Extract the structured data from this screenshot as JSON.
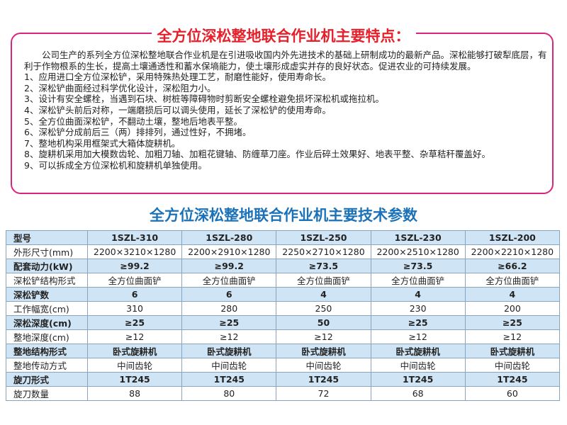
{
  "features": {
    "title": "全方位深松整地联合作业机主要特点：",
    "intro": "公司生产的系列全方位深松整地联合作业机是在引进吸收国内外先进技术的基础上研制成功的最新产品。深松能够打破犁底层，有利于作物根系的生长，提高土壤通透性和蓄水保墒能力，使土壤形成虚实并存的良好状态。促进农业的可持续发展。",
    "items": [
      "1、应用进口全方位深松铲，采用特殊热处理工艺，耐磨性能好，使用寿命长。",
      "2、深松铲曲面经过科学优化设计，深松阻力小。",
      "3、设计有安全螺栓，当遇到石块、树桩等障碍物时剪断安全螺栓避免损坏深松机或拖拉机。",
      "4、深松铲头前后对称，一端磨损后可以调头使用，延长了深松铲的使用寿命。",
      "5、全方位曲面深松铲，不翻动土壤，整地后地表平整。",
      "6、深松铲分成前后三（两）排排列，通过性好，不拥堵。",
      "7、整地机构采用框架式大箱体旋耕机。",
      "8、旋耕机采用加大模数齿轮、加粗刀轴、加粗花键轴、防缠草刀座。作业后碎土效果好、地表平整、杂草秸秆覆盖好。",
      "9、可以拆成全方位深松机和旋耕机单独使用。"
    ]
  },
  "table": {
    "title": "全方位深松整地联合作业机主要技术参数",
    "header": [
      "型号",
      "1SZL-310",
      "1SZL-280",
      "1SZL-250",
      "1SZL-230",
      "1SZL-200"
    ],
    "rows": [
      [
        "外形尺寸(mm)",
        "2200×3210×1280",
        "2200×2910×1280",
        "2250×2710×1280",
        "2200×2510×1280",
        "2200×2210×1280"
      ],
      [
        "配套动力(kW)",
        "≥99.2",
        "≥99.2",
        "≥73.5",
        "≥73.5",
        "≥66.2"
      ],
      [
        "深松铲结构形式",
        "全方位曲面铲",
        "全方位曲面铲",
        "全方位曲面铲",
        "全方位曲面铲",
        "全方位曲面铲"
      ],
      [
        "深松铲数",
        "6",
        "6",
        "4",
        "4",
        "4"
      ],
      [
        "工作幅宽(cm)",
        "310",
        "280",
        "250",
        "230",
        "200"
      ],
      [
        "深松深度(cm)",
        "≥25",
        "≥25",
        "50",
        "≥25",
        "≥25"
      ],
      [
        "整地深度(cm)",
        "≥12",
        "≥12",
        "≥12",
        "≥12",
        "≥12"
      ],
      [
        "整地结构形式",
        "卧式旋耕机",
        "卧式旋耕机",
        "卧式旋耕机",
        "卧式旋耕机",
        "卧式旋耕机"
      ],
      [
        "整地传动方式",
        "中间齿轮",
        "中间齿轮",
        "中间齿轮",
        "中间齿轮",
        "中间齿轮"
      ],
      [
        "旋刀形式",
        "1T245",
        "1T245",
        "1T245",
        "1T245",
        "1T245"
      ],
      [
        "旋刀数量",
        "88",
        "80",
        "72",
        "68",
        "60"
      ]
    ]
  }
}
